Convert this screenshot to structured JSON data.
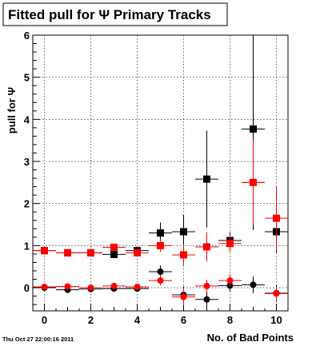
{
  "canvas": {
    "title": "Fitted pull for Ψ  Primary Tracks",
    "timestamp": "Thu Oct 27 22:00:16 2011"
  },
  "chart_data": {
    "type": "scatter",
    "title": "Fitted pull for Ψ  Primary Tracks",
    "xlabel": "No. of Bad Points",
    "ylabel": "pull for Ψ",
    "xlim": [
      -0.5,
      10.5
    ],
    "ylim": [
      -0.55,
      6
    ],
    "x_ticks": [
      "0",
      "2",
      "4",
      "6",
      "8",
      "10"
    ],
    "y_ticks": [
      "0",
      "1",
      "2",
      "3",
      "4",
      "5",
      "6"
    ],
    "grid": true,
    "series": [
      {
        "marker": "square",
        "color": "#000000",
        "points": [
          {
            "x": 0,
            "y": 0.88,
            "yerr": 0.03
          },
          {
            "x": 1,
            "y": 0.83,
            "yerr": 0.03
          },
          {
            "x": 2,
            "y": 0.83,
            "yerr": 0.03
          },
          {
            "x": 3,
            "y": 0.79,
            "yerr": 0.04
          },
          {
            "x": 4,
            "y": 0.88,
            "yerr": 0.05
          },
          {
            "x": 5,
            "y": 1.3,
            "yerr": 0.25
          },
          {
            "x": 6,
            "y": 1.33,
            "yerr": 0.4
          },
          {
            "x": 7,
            "y": 2.58,
            "yerr": 1.15
          },
          {
            "x": 8,
            "y": 1.12,
            "yerr": 0.2
          },
          {
            "x": 9,
            "y": 3.77,
            "yerr": 2.4
          },
          {
            "x": 10,
            "y": 1.33,
            "yerr": 0.5
          }
        ]
      },
      {
        "marker": "square",
        "color": "#ff0000",
        "points": [
          {
            "x": 0,
            "y": 0.88,
            "yerr": 0.03
          },
          {
            "x": 1,
            "y": 0.83,
            "yerr": 0.03
          },
          {
            "x": 2,
            "y": 0.83,
            "yerr": 0.03
          },
          {
            "x": 3,
            "y": 0.96,
            "yerr": 0.04
          },
          {
            "x": 4,
            "y": 0.83,
            "yerr": 0.05
          },
          {
            "x": 5,
            "y": 1.0,
            "yerr": 0.15
          },
          {
            "x": 6,
            "y": 0.78,
            "yerr": 0.25
          },
          {
            "x": 7,
            "y": 0.97,
            "yerr": 0.35
          },
          {
            "x": 8,
            "y": 1.05,
            "yerr": 0.2
          },
          {
            "x": 9,
            "y": 2.5,
            "yerr": 1.0
          },
          {
            "x": 10,
            "y": 1.65,
            "yerr": 0.75
          }
        ]
      },
      {
        "marker": "circle",
        "color": "#000000",
        "points": [
          {
            "x": 0,
            "y": 0.0,
            "yerr": 0.03
          },
          {
            "x": 1,
            "y": -0.05,
            "yerr": 0.03
          },
          {
            "x": 2,
            "y": -0.03,
            "yerr": 0.03
          },
          {
            "x": 3,
            "y": -0.02,
            "yerr": 0.04
          },
          {
            "x": 4,
            "y": -0.02,
            "yerr": 0.05
          },
          {
            "x": 5,
            "y": 0.38,
            "yerr": 0.15
          },
          {
            "x": 6,
            "y": -0.17,
            "yerr": 0.2
          },
          {
            "x": 7,
            "y": -0.28,
            "yerr": 0.2
          },
          {
            "x": 8,
            "y": 0.05,
            "yerr": 0.15
          },
          {
            "x": 9,
            "y": 0.07,
            "yerr": 0.2
          },
          {
            "x": 10,
            "y": -0.13,
            "yerr": 0.2
          }
        ]
      },
      {
        "marker": "circle",
        "color": "#ff0000",
        "points": [
          {
            "x": 0,
            "y": 0.02,
            "yerr": 0.03
          },
          {
            "x": 1,
            "y": 0.03,
            "yerr": 0.03
          },
          {
            "x": 2,
            "y": 0.0,
            "yerr": 0.03
          },
          {
            "x": 3,
            "y": 0.04,
            "yerr": 0.04
          },
          {
            "x": 4,
            "y": 0.02,
            "yerr": 0.05
          },
          {
            "x": 5,
            "y": 0.17,
            "yerr": 0.12
          },
          {
            "x": 6,
            "y": -0.22,
            "yerr": 0.2
          },
          {
            "x": 7,
            "y": 0.04,
            "yerr": 0.15
          },
          {
            "x": 8,
            "y": 0.17,
            "yerr": 0.15
          },
          {
            "x": 9,
            "y": 2.5,
            "yerr": 0.0
          },
          {
            "x": 10,
            "y": -0.14,
            "yerr": 0.15
          }
        ]
      }
    ]
  }
}
